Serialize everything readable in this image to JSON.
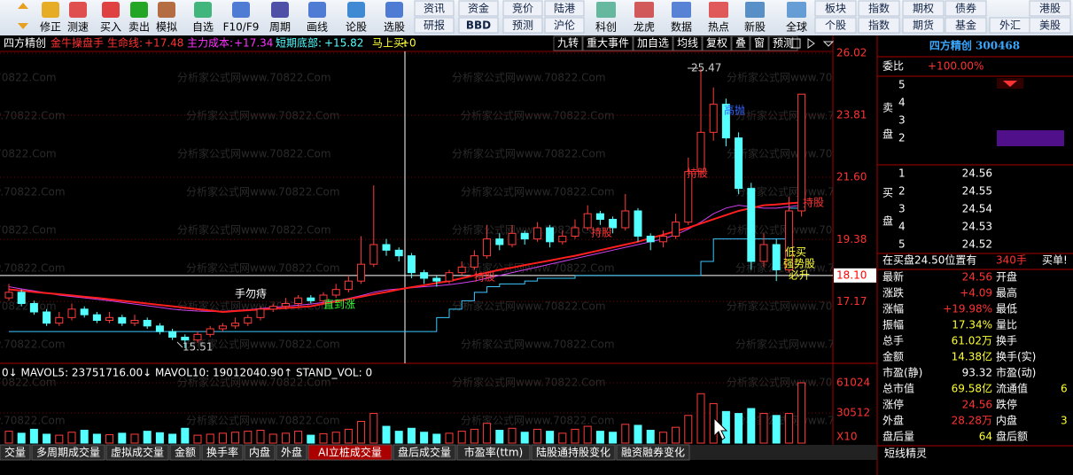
{
  "toolbar": {
    "icons": [
      "修正",
      "测速",
      "买入",
      "卖出",
      "模拟",
      "自选",
      "F10/F9",
      "周期",
      "画线",
      "论股",
      "选股"
    ],
    "grid_top": [
      "资讯",
      "资金",
      "竞价",
      "陆港"
    ],
    "grid_bottom": [
      "研报",
      "BBD",
      "预测",
      "沪伦"
    ],
    "icons2": [
      "科创",
      "龙虎",
      "数据",
      "热点",
      "新股",
      "全球"
    ],
    "market_top": [
      "板块",
      "指数",
      "期权",
      "债券",
      "港股"
    ],
    "market_bottom": [
      "个股",
      "指数",
      "期货",
      "基金",
      "外汇",
      "美股"
    ]
  },
  "chart_header": {
    "items": [
      "四方精创",
      "金牛操盘手",
      "生命线:",
      "+17.48",
      "主力成本:",
      "+17.34",
      "短期底部:",
      "+15.82",
      "马上买:",
      "+0"
    ],
    "buttons": [
      "九转",
      "重大事件",
      "加自选",
      "均线",
      "复权",
      "叠",
      "窗",
      "预测"
    ]
  },
  "watermark": "分析家公式网www.70822.Com",
  "price_chart": {
    "yticks": [
      26.02,
      23.81,
      {
        "value": 21.6,
        "label": "21.60"
      },
      19.38,
      17.17
    ],
    "highlight": {
      "value": 18.1,
      "label": "18.10"
    },
    "candles": [
      [
        17.3,
        17.5,
        17.8,
        17.2
      ],
      [
        17.5,
        17.1,
        17.6,
        17.0
      ],
      [
        17.1,
        16.8,
        17.2,
        16.7
      ],
      [
        16.8,
        16.4,
        16.9,
        16.3
      ],
      [
        16.4,
        16.6,
        16.8,
        16.3
      ],
      [
        16.6,
        16.9,
        17.1,
        16.5
      ],
      [
        16.9,
        16.7,
        17.0,
        16.6
      ],
      [
        16.7,
        16.5,
        16.8,
        16.4
      ],
      [
        16.5,
        16.6,
        16.8,
        16.4
      ],
      [
        16.6,
        16.4,
        16.7,
        16.3
      ],
      [
        16.4,
        16.5,
        16.7,
        16.3
      ],
      [
        16.5,
        16.3,
        16.6,
        16.2
      ],
      [
        16.3,
        16.1,
        16.4,
        16.0
      ],
      [
        16.1,
        15.9,
        16.2,
        15.8
      ],
      [
        15.9,
        15.8,
        16.0,
        15.51
      ],
      [
        15.8,
        16.0,
        16.1,
        15.7
      ],
      [
        16.0,
        16.2,
        16.3,
        15.9
      ],
      [
        16.2,
        16.3,
        16.4,
        16.1
      ],
      [
        16.3,
        16.4,
        16.6,
        16.2
      ],
      [
        16.4,
        16.6,
        16.7,
        16.3
      ],
      [
        16.6,
        16.9,
        17.0,
        16.5
      ],
      [
        16.9,
        17.0,
        17.1,
        16.8
      ],
      [
        17.0,
        17.1,
        17.3,
        16.9
      ],
      [
        17.1,
        17.3,
        17.4,
        17.0
      ],
      [
        17.3,
        17.2,
        17.4,
        17.1
      ],
      [
        17.2,
        17.4,
        17.5,
        17.1
      ],
      [
        17.4,
        17.6,
        17.8,
        17.3
      ],
      [
        17.6,
        17.9,
        18.1,
        17.5
      ],
      [
        17.9,
        18.5,
        19.5,
        17.8
      ],
      [
        18.5,
        19.2,
        21.31,
        18.4
      ],
      [
        19.2,
        19.0,
        19.4,
        18.8
      ],
      [
        19.0,
        18.8,
        19.1,
        18.6
      ],
      [
        18.8,
        18.2,
        18.9,
        18.0
      ],
      [
        18.2,
        18.0,
        18.3,
        17.8
      ],
      [
        18.0,
        17.9,
        18.1,
        17.7
      ],
      [
        17.9,
        18.2,
        18.3,
        17.8
      ],
      [
        18.2,
        18.4,
        18.6,
        18.1
      ],
      [
        18.4,
        18.8,
        19.0,
        18.3
      ],
      [
        18.8,
        19.4,
        19.9,
        18.7
      ],
      [
        19.4,
        19.2,
        19.6,
        19.0
      ],
      [
        19.2,
        19.6,
        19.9,
        19.1
      ],
      [
        19.6,
        19.4,
        19.7,
        19.2
      ],
      [
        19.4,
        19.8,
        20.0,
        19.3
      ],
      [
        19.8,
        19.3,
        19.9,
        19.1
      ],
      [
        19.3,
        19.5,
        19.7,
        19.2
      ],
      [
        19.5,
        19.8,
        20.1,
        19.4
      ],
      [
        19.8,
        20.3,
        20.6,
        19.7
      ],
      [
        20.3,
        20.1,
        20.4,
        19.9
      ],
      [
        20.1,
        19.8,
        20.2,
        19.6
      ],
      [
        19.8,
        20.4,
        21.0,
        19.7
      ],
      [
        20.4,
        19.5,
        20.5,
        19.3
      ],
      [
        19.5,
        19.3,
        19.6,
        19.0
      ],
      [
        19.3,
        19.5,
        19.7,
        19.1
      ],
      [
        19.5,
        20.0,
        20.3,
        19.4
      ],
      [
        20.0,
        21.8,
        22.3,
        19.9
      ],
      [
        21.8,
        23.2,
        25.47,
        21.6
      ],
      [
        23.2,
        24.2,
        24.8,
        22.9
      ],
      [
        24.2,
        23.0,
        24.4,
        22.7
      ],
      [
        23.0,
        21.2,
        23.2,
        21.0
      ],
      [
        21.2,
        18.6,
        21.4,
        18.3
      ],
      [
        18.6,
        19.2,
        19.6,
        18.4
      ],
      [
        19.2,
        18.3,
        19.4,
        17.9
      ],
      [
        18.3,
        20.4,
        20.9,
        18.2
      ],
      [
        20.4,
        24.56,
        24.56,
        20.2
      ]
    ],
    "ma_red": [
      17.6,
      17.56,
      17.51,
      17.47,
      17.43,
      17.39,
      17.34,
      17.3,
      17.25,
      17.2,
      17.15,
      17.1,
      17.05,
      17.0,
      16.95,
      16.9,
      16.85,
      16.8,
      16.83,
      16.86,
      16.89,
      16.91,
      16.94,
      16.97,
      17.0,
      17.09,
      17.17,
      17.26,
      17.34,
      17.43,
      17.51,
      17.6,
      17.68,
      17.75,
      17.83,
      17.9,
      18.0,
      18.1,
      18.2,
      18.3,
      18.38,
      18.47,
      18.55,
      18.63,
      18.72,
      18.8,
      18.9,
      19.0,
      19.1,
      19.2,
      19.3,
      19.43,
      19.55,
      19.68,
      19.8,
      19.95,
      20.1,
      20.25,
      20.4,
      20.5,
      20.6,
      20.63,
      20.67,
      20.7
    ],
    "ma_purple": [
      17.7,
      17.62,
      17.55,
      17.48,
      17.4,
      17.35,
      17.3,
      17.25,
      17.2,
      17.14,
      17.08,
      17.02,
      16.96,
      16.9,
      16.86,
      16.83,
      16.82,
      16.82,
      16.85,
      16.88,
      16.92,
      16.96,
      17.0,
      17.04,
      17.08,
      17.14,
      17.2,
      17.28,
      17.38,
      17.5,
      17.58,
      17.62,
      17.66,
      17.7,
      17.73,
      17.77,
      17.83,
      17.9,
      18.0,
      18.1,
      18.2,
      18.3,
      18.4,
      18.5,
      18.6,
      18.7,
      18.8,
      18.9,
      19.0,
      19.1,
      19.2,
      19.3,
      19.4,
      19.55,
      19.75,
      20.0,
      20.3,
      20.5,
      20.6,
      20.55,
      20.5,
      20.5,
      20.55,
      20.6
    ],
    "bottom_line": [
      16.1,
      16.1,
      16.1,
      16.1,
      16.1,
      16.1,
      16.1,
      16.1,
      16.1,
      16.1,
      16.1,
      16.1,
      16.1,
      16.1,
      16.1,
      16.1,
      16.1,
      16.1,
      16.1,
      16.1,
      16.1,
      16.1,
      16.1,
      16.1,
      16.1,
      16.1,
      16.1,
      16.1,
      16.1,
      16.1,
      16.1,
      16.1,
      16.1,
      16.1,
      16.1,
      16.6,
      16.9,
      17.2,
      17.5,
      17.7,
      17.8,
      17.8,
      17.9,
      18.0,
      18.0,
      18.0,
      18.1,
      18.1,
      18.1,
      18.1,
      18.1,
      18.1,
      18.1,
      18.1,
      18.1,
      18.1,
      18.6,
      19.4,
      19.4,
      19.4,
      19.4,
      19.4,
      19.4,
      20.5
    ],
    "annotations": [
      "25.47",
      "15.51",
      "手勿痔",
      "直到涨",
      "持股",
      "持股",
      "持股",
      "高抛",
      "持股",
      "低买",
      "强势股",
      "必升"
    ]
  },
  "volume_chart": {
    "header": "0↓ MAVOL5: 23751716.00↓ MAVOL10: 19012040.90↑ STAND_VOL: 0",
    "yticks": [
      61024,
      30512
    ],
    "unit": "X10",
    "values": [
      12000,
      10000,
      14000,
      9000,
      8000,
      11000,
      13000,
      9000,
      8500,
      10000,
      9000,
      12000,
      10500,
      9000,
      15000,
      8000,
      9000,
      10000,
      11000,
      12000,
      13000,
      9000,
      10000,
      12000,
      8000,
      9500,
      11000,
      14000,
      22000,
      30000,
      17000,
      12000,
      15000,
      11000,
      9000,
      10000,
      12000,
      14000,
      20000,
      13000,
      15000,
      11000,
      14000,
      12000,
      10000,
      14000,
      17000,
      12000,
      11000,
      19000,
      18000,
      13000,
      11000,
      16000,
      28000,
      50000,
      40000,
      32000,
      30000,
      35000,
      30000,
      28000,
      30000,
      61024
    ]
  },
  "tabs": [
    "交量",
    "多周期成交量",
    "虚拟成交量",
    "金额",
    "换手率",
    "内盘",
    "外盘",
    "AI立桩成交量",
    "盘后成交量",
    "市盈率(ttm)",
    "陆股通持股变化",
    "融资融券变化"
  ],
  "quote": {
    "title": "四方精创 300468",
    "weibi_label": "委比",
    "weibi": "+100.00%",
    "sell_labels": [
      "卖",
      "盘"
    ],
    "sell_levels": [
      "5",
      "4",
      "3",
      "2"
    ],
    "buy_labels": [
      "买",
      "盘"
    ],
    "buy_levels": [
      [
        "1",
        "24.56"
      ],
      [
        "2",
        "24.55"
      ],
      [
        "3",
        "24.54"
      ],
      [
        "4",
        "24.53"
      ],
      [
        "5",
        "24.52"
      ]
    ],
    "notice": [
      "在买盘24.50位置有",
      "340手",
      "买单!"
    ],
    "stats": [
      [
        "最新",
        "24.56",
        "开盘"
      ],
      [
        "涨跌",
        "+4.09",
        "最高"
      ],
      [
        "涨幅",
        "+19.98%",
        "最低"
      ],
      [
        "振幅",
        "17.34%",
        "量比"
      ],
      [
        "总手",
        "61.02万",
        "换手"
      ],
      [
        "金额",
        "14.38亿",
        "换手(实)"
      ],
      [
        "市盈(静)",
        "93.32",
        "市盈(动)"
      ],
      [
        "总市值",
        "69.58亿",
        "流通值",
        "6"
      ],
      [
        "涨停",
        "24.56",
        "跌停"
      ],
      [
        "外盘",
        "28.28万",
        "内盘",
        "3"
      ],
      [
        "盘后量",
        "64",
        "盘后额"
      ]
    ],
    "footer": "短线精灵"
  }
}
